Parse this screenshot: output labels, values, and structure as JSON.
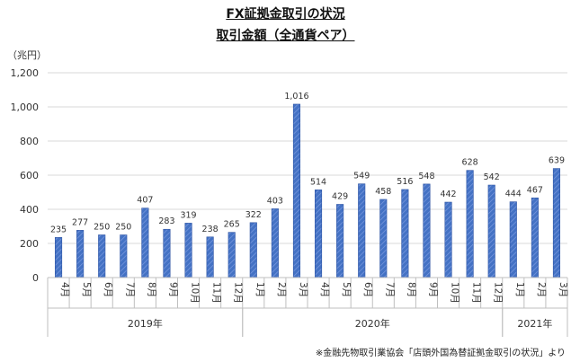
{
  "title": "FX証拠金取引の状況",
  "subtitle": "取引金額（全通貨ペア）",
  "chart_data": {
    "type": "bar",
    "unit_label": "（兆円）",
    "ylim": [
      0,
      1200
    ],
    "yticks": [
      "0",
      "200",
      "400",
      "600",
      "800",
      "1,000",
      "1,200"
    ],
    "ytick_values": [
      0,
      200,
      400,
      600,
      800,
      1000,
      1200
    ],
    "categories": [
      "4月",
      "5月",
      "6月",
      "7月",
      "8月",
      "9月",
      "10月",
      "11月",
      "12月",
      "1月",
      "2月",
      "3月",
      "4月",
      "5月",
      "6月",
      "7月",
      "8月",
      "9月",
      "10月",
      "11月",
      "12月",
      "1月",
      "2月",
      "3月"
    ],
    "values": [
      235,
      277,
      250,
      250,
      407,
      283,
      319,
      238,
      265,
      322,
      403,
      1016,
      514,
      429,
      549,
      458,
      516,
      548,
      442,
      628,
      542,
      444,
      467,
      639
    ],
    "data_labels": [
      "235",
      "277",
      "250",
      "250",
      "407",
      "283",
      "319",
      "238",
      "265",
      "322",
      "403",
      "1,016",
      "514",
      "429",
      "549",
      "458",
      "516",
      "548",
      "442",
      "628",
      "542",
      "444",
      "467",
      "639"
    ],
    "groups": [
      {
        "label": "2019年",
        "start": 0,
        "end": 8
      },
      {
        "label": "2020年",
        "start": 9,
        "end": 20
      },
      {
        "label": "2021年",
        "start": 21,
        "end": 23
      }
    ],
    "grid": true,
    "legend": "none",
    "bar_color": "#4472c4",
    "bar_pattern": "diagonal-hatch"
  },
  "source_note": "※金融先物取引業協会「店頭外国為替証拠金取引の状況」より"
}
